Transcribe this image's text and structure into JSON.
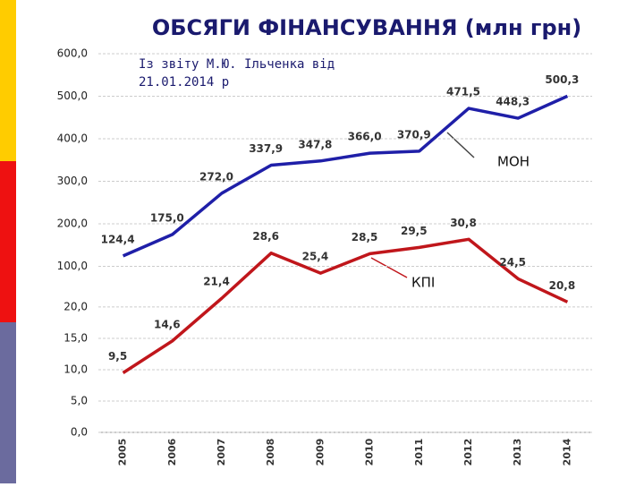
{
  "chart_data": {
    "type": "line",
    "title": "ОБСЯГИ ФІНАНСУВАННЯ (млн грн)",
    "annotation": "Із звіту М.Ю. Ільченка від 21.01.2014 р",
    "categories": [
      "2005",
      "2006",
      "2007",
      "2008",
      "2009",
      "2010",
      "2011",
      "2012",
      "2013",
      "2014"
    ],
    "series": [
      {
        "name": "МОН",
        "color": "#1f1fa8",
        "axis": "y2",
        "values": [
          124.4,
          175.0,
          272.0,
          337.9,
          347.8,
          366.0,
          370.9,
          471.5,
          448.3,
          500.3
        ],
        "value_labels": [
          "124,4",
          "175,0",
          "272,0",
          "337,9",
          "347,8",
          "366,0",
          "370,9",
          "471,5",
          "448,3",
          "500,3"
        ]
      },
      {
        "name": "КПІ",
        "color": "#c0161b",
        "values": [
          9.5,
          14.6,
          21.4,
          28.6,
          25.4,
          28.5,
          29.5,
          30.8,
          24.5,
          20.8
        ],
        "value_labels": [
          "9,5",
          "14,6",
          "21,4",
          "28,6",
          "25,4",
          "28,5",
          "29,5",
          "30,8",
          "24,5",
          "20,8"
        ]
      }
    ],
    "ylim": [
      0,
      60.4
    ],
    "yticks": [
      {
        "value": 0,
        "label": "0,0"
      },
      {
        "value": 5,
        "label": "5,0"
      },
      {
        "value": 10,
        "label": "10,0"
      },
      {
        "value": 15,
        "label": "15,0"
      },
      {
        "value": 20,
        "label": "20,0"
      }
    ],
    "y2lim": [
      -290.5,
      600
    ],
    "y2ticks": [
      {
        "value": 100,
        "label": "100,0"
      },
      {
        "value": 200,
        "label": "200,0"
      },
      {
        "value": 300,
        "label": "300,0"
      },
      {
        "value": 400,
        "label": "400,0"
      },
      {
        "value": 500,
        "label": "500,0"
      },
      {
        "value": 600,
        "label": "600,0"
      }
    ],
    "grid": true
  }
}
